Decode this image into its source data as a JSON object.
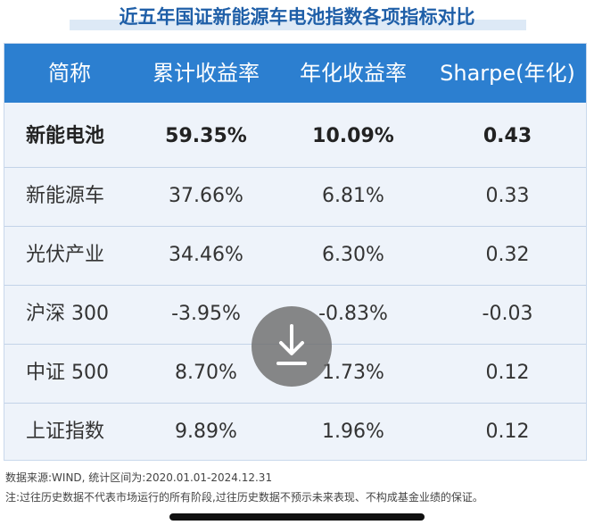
{
  "title": "近五年国证新能源车电池指数各项指标对比",
  "table": {
    "headers": [
      "简称",
      "累计收益率",
      "年化收益率",
      "Sharpe(年化)"
    ],
    "rows": [
      {
        "name": "新能电池",
        "cumulative": "59.35%",
        "annualized": "10.09%",
        "sharpe": "0.43"
      },
      {
        "name": "新能源车",
        "cumulative": "37.66%",
        "annualized": "6.81%",
        "sharpe": "0.33"
      },
      {
        "name": "光伏产业",
        "cumulative": "34.46%",
        "annualized": "6.30%",
        "sharpe": "0.32"
      },
      {
        "name": "沪深 300",
        "cumulative": "-3.95%",
        "annualized": "-0.83%",
        "sharpe": "-0.03"
      },
      {
        "name": "中证 500",
        "cumulative": "8.70%",
        "annualized": "1.73%",
        "sharpe": "0.12"
      },
      {
        "name": "上证指数",
        "cumulative": "9.89%",
        "annualized": "1.96%",
        "sharpe": "0.12"
      }
    ]
  },
  "footer": {
    "source": "数据来源:WIND, 统计区间为:2020.01.01-2024.12.31",
    "note": "注:过往历史数据不代表市场运行的所有阶段,过往历史数据不预示未来表现、不构成基金业绩的保证。"
  },
  "download_icon": "download-icon",
  "colors": {
    "header_bg": "#2c7fd0",
    "title": "#1f5fa8",
    "table_bg": "#eef3fa"
  }
}
